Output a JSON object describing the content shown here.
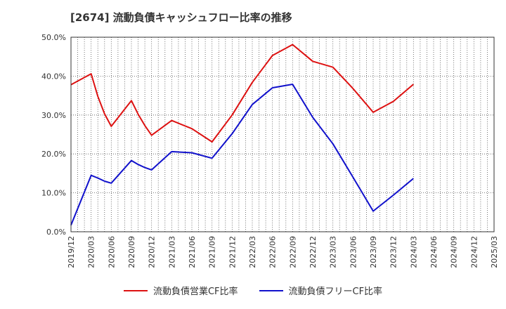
{
  "chart_data": {
    "type": "line",
    "title": "[2674]  流動負債キャッシュフロー比率の推移",
    "xlabel": "",
    "ylabel": "",
    "ylim": [
      0,
      50
    ],
    "y_ticks": [
      0,
      10,
      20,
      30,
      40,
      50
    ],
    "y_tick_labels": [
      "0.0%",
      "10.0%",
      "20.0%",
      "30.0%",
      "40.0%",
      "50.0%"
    ],
    "x_ticks": [
      "2019/12",
      "2020/03",
      "2020/06",
      "2020/09",
      "2020/12",
      "2021/03",
      "2021/06",
      "2021/09",
      "2021/12",
      "2022/03",
      "2022/06",
      "2022/09",
      "2022/12",
      "2023/03",
      "2023/06",
      "2023/09",
      "2023/12",
      "2024/03",
      "2024/06",
      "2024/09",
      "2024/12",
      "2025/03"
    ],
    "grid": true,
    "legend_position": "bottom",
    "series": [
      {
        "name": "流動負債営業CF比率",
        "color": "#dd1111",
        "x": [
          "2019/12",
          "2020/03",
          "2020/04",
          "2020/05",
          "2020/06",
          "2020/09",
          "2020/10",
          "2020/11",
          "2020/12",
          "2021/03",
          "2021/06",
          "2021/09",
          "2021/12",
          "2022/03",
          "2022/06",
          "2022/09",
          "2022/12",
          "2023/03",
          "2023/06",
          "2023/09",
          "2023/12",
          "2024/03"
        ],
        "values": [
          37.8,
          40.6,
          34.8,
          30.3,
          27.1,
          33.7,
          30.2,
          27.3,
          24.8,
          28.6,
          26.5,
          23.1,
          30.0,
          38.4,
          45.3,
          48.1,
          43.8,
          42.3,
          36.8,
          30.7,
          33.5,
          37.9
        ]
      },
      {
        "name": "流動負債フリーCF比率",
        "color": "#1111cc",
        "x": [
          "2019/12",
          "2020/03",
          "2020/04",
          "2020/05",
          "2020/06",
          "2020/09",
          "2020/10",
          "2020/11",
          "2020/12",
          "2021/03",
          "2021/06",
          "2021/09",
          "2021/12",
          "2022/03",
          "2022/06",
          "2022/09",
          "2022/12",
          "2023/03",
          "2023/06",
          "2023/09",
          "2023/12",
          "2024/03"
        ],
        "values": [
          1.7,
          14.5,
          13.8,
          13.0,
          12.5,
          18.3,
          17.3,
          16.5,
          15.9,
          20.6,
          20.3,
          18.9,
          25.2,
          32.7,
          37.0,
          37.9,
          29.4,
          22.6,
          14.0,
          5.3,
          9.4,
          13.7
        ]
      }
    ]
  }
}
